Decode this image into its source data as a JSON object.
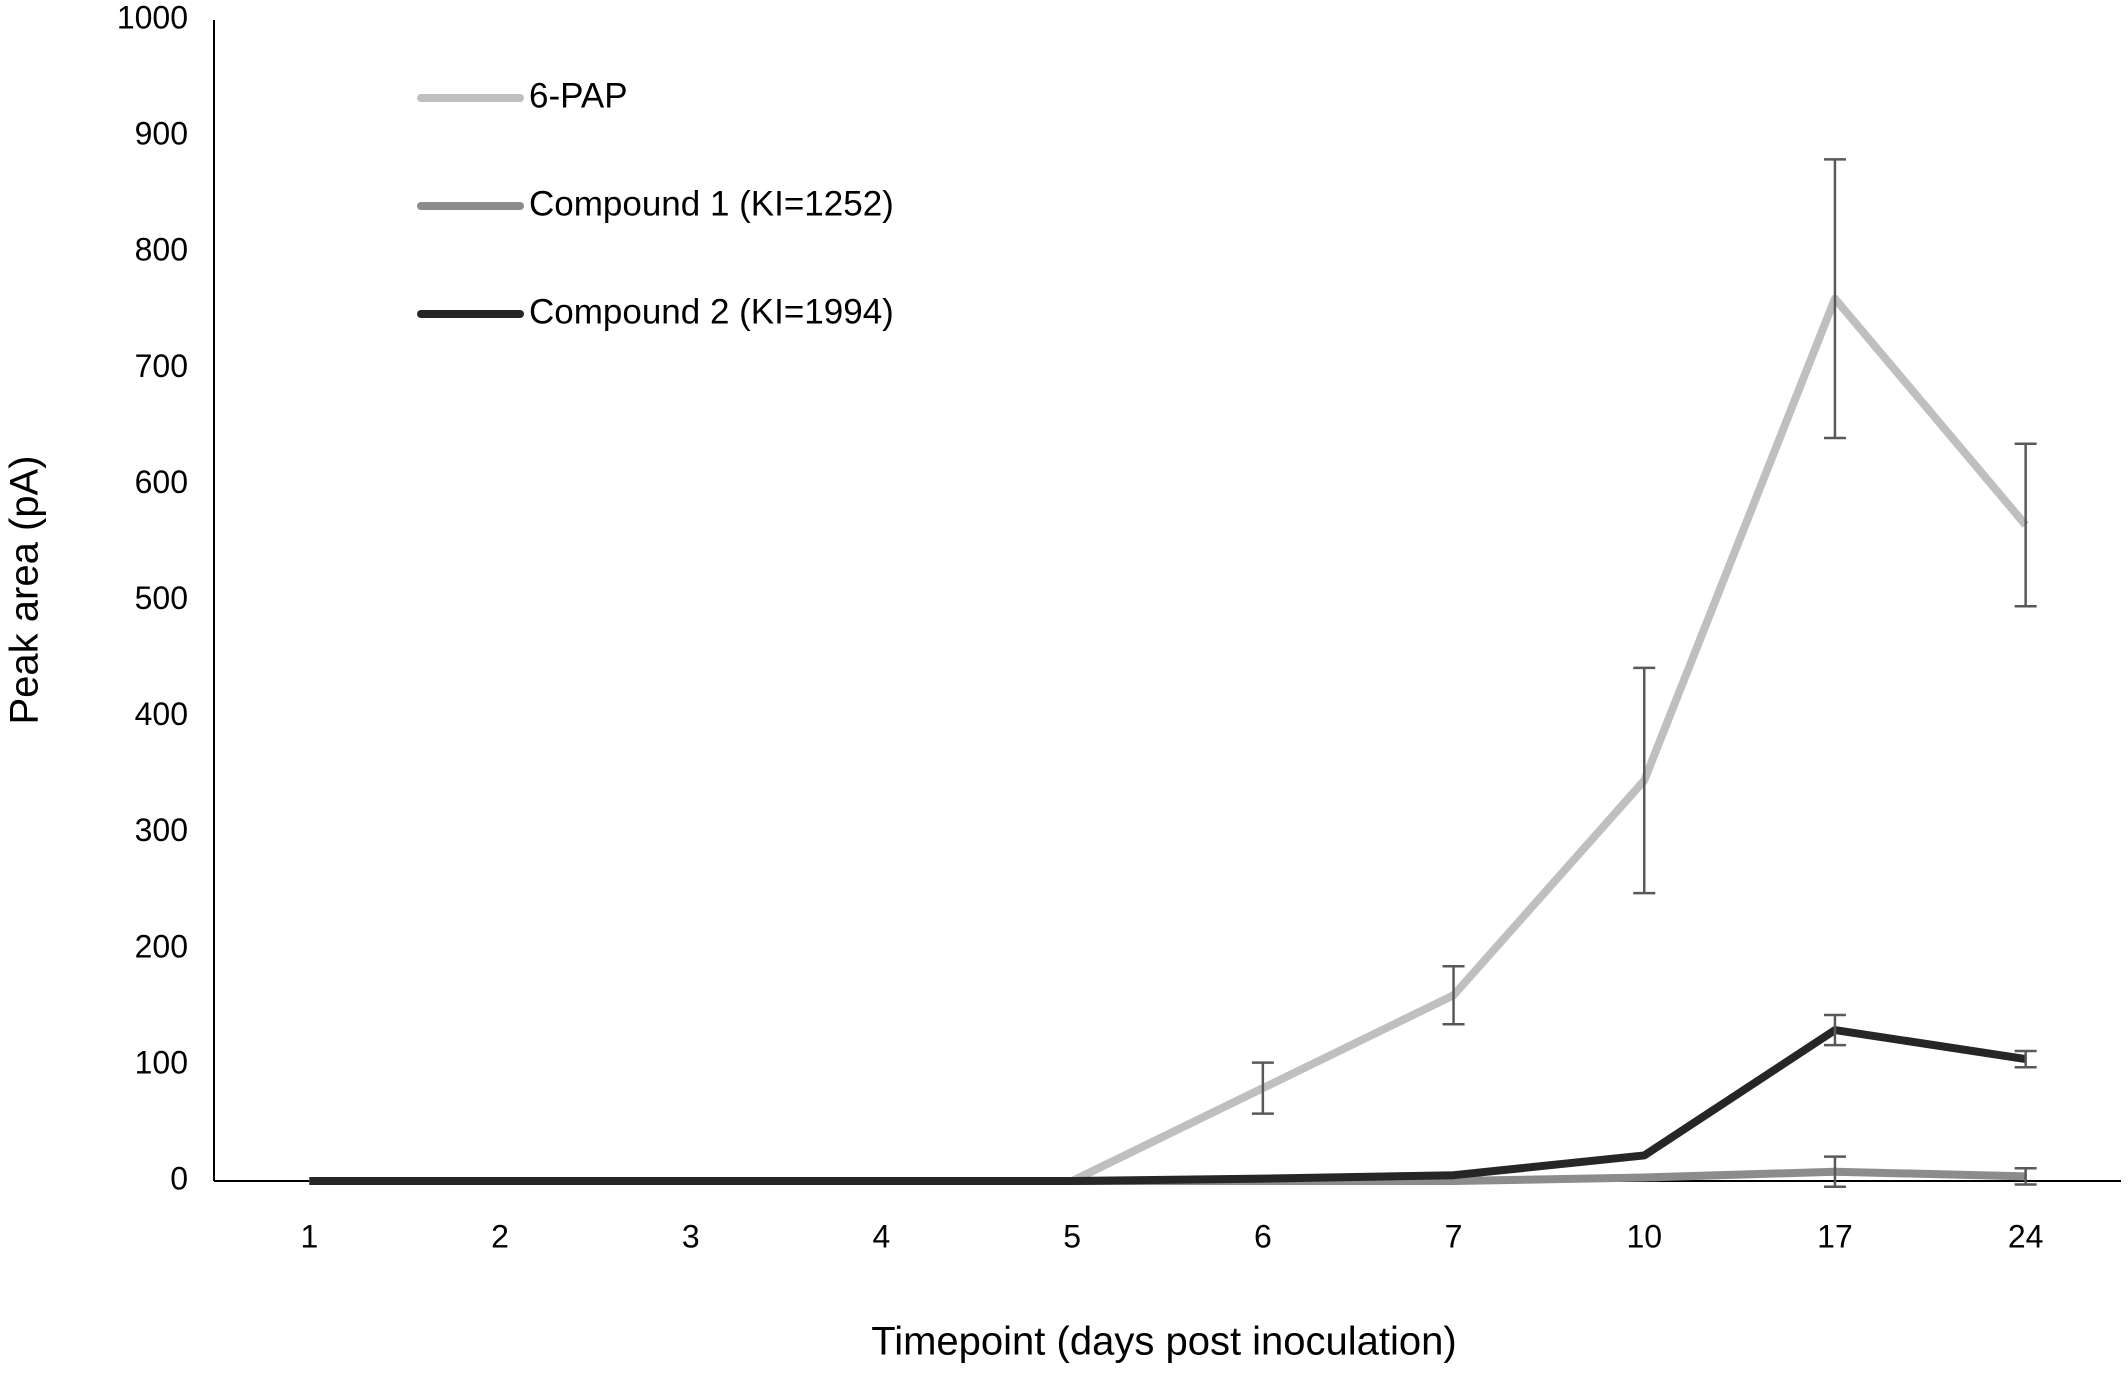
{
  "chart_data": {
    "type": "line",
    "x_label": "Timepoint (days post inoculation)",
    "y_label": "Peak area (pA)",
    "categories": [
      "1",
      "2",
      "3",
      "4",
      "5",
      "6",
      "7",
      "10",
      "17",
      "24"
    ],
    "series": [
      {
        "name": "6-PAP",
        "color": "#bfbfbf",
        "values": [
          0,
          0,
          0,
          0,
          0,
          80,
          160,
          345,
          760,
          565
        ],
        "errors": [
          0,
          0,
          0,
          0,
          0,
          22,
          25,
          97,
          120,
          70
        ]
      },
      {
        "name": "Compound 1 (KI=1252)",
        "color": "#8c8c8c",
        "values": [
          0,
          0,
          0,
          0,
          0,
          0,
          0,
          3,
          8,
          4
        ],
        "errors": [
          0,
          0,
          0,
          0,
          0,
          0,
          0,
          0,
          13,
          7
        ]
      },
      {
        "name": "Compound 2 (KI=1994)",
        "color": "#262626",
        "values": [
          0,
          0,
          0,
          0,
          0,
          2,
          5,
          22,
          130,
          105
        ],
        "errors": [
          0,
          0,
          0,
          0,
          0,
          0,
          0,
          0,
          13,
          7
        ]
      }
    ],
    "error_color": "#595959",
    "ylim": [
      0,
      1000
    ],
    "yticks": [
      0,
      100,
      200,
      300,
      400,
      500,
      600,
      700,
      800,
      900,
      1000
    ],
    "grid": false,
    "legend": "upper left"
  }
}
